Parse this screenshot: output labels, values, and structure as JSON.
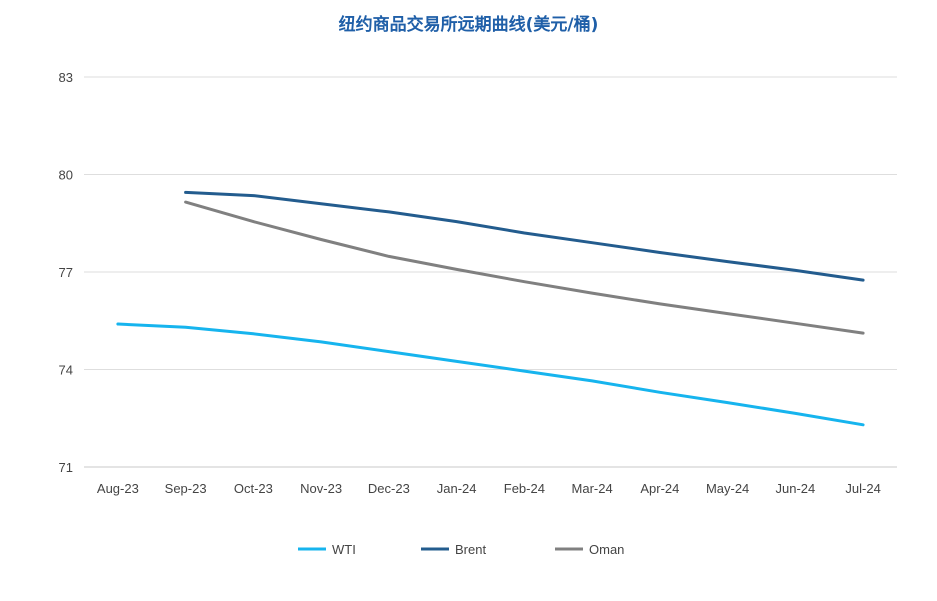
{
  "chart_data": {
    "type": "line",
    "title": "纽约商品交易所远期曲线(美元/桶)",
    "categories": [
      "Aug-23",
      "Sep-23",
      "Oct-23",
      "Nov-23",
      "Dec-23",
      "Jan-24",
      "Feb-24",
      "Mar-24",
      "Apr-24",
      "May-24",
      "Jun-24",
      "Jul-24"
    ],
    "ylim": [
      71,
      83
    ],
    "yticks": [
      71,
      74,
      77,
      80,
      83
    ],
    "grid": true,
    "legend_position": "bottom",
    "series": [
      {
        "name": "WTI",
        "color": "#16b4ee",
        "values": [
          75.4,
          75.3,
          75.1,
          74.85,
          74.55,
          74.25,
          73.95,
          73.65,
          73.3,
          72.98,
          72.65,
          72.3
        ]
      },
      {
        "name": "Brent",
        "color": "#235c8e",
        "values": [
          null,
          79.45,
          79.35,
          79.1,
          78.85,
          78.55,
          78.2,
          77.9,
          77.6,
          77.32,
          77.05,
          76.75
        ]
      },
      {
        "name": "Oman",
        "color": "#808080",
        "values": [
          null,
          79.15,
          78.55,
          78.0,
          77.48,
          77.08,
          76.7,
          76.35,
          76.02,
          75.72,
          75.42,
          75.12
        ]
      }
    ]
  }
}
